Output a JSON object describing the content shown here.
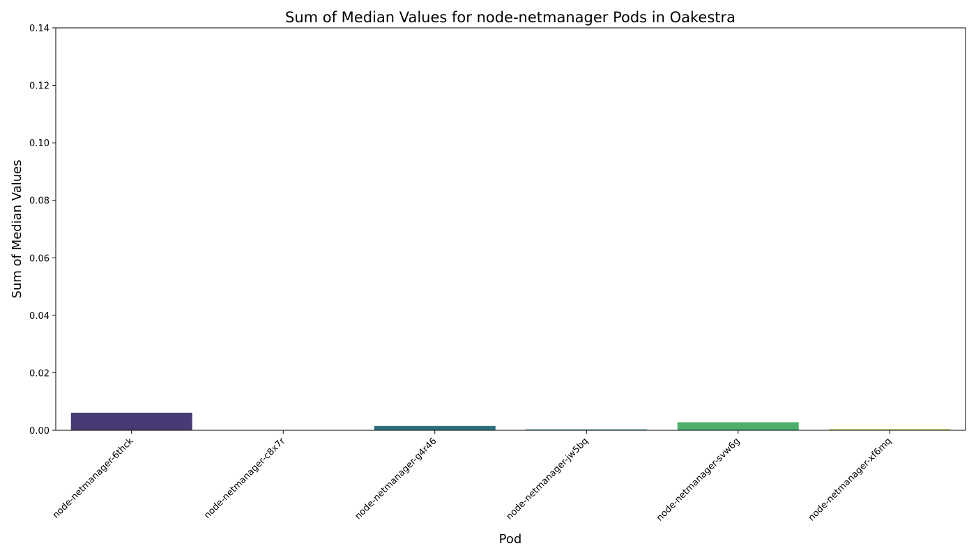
{
  "chart_data": {
    "type": "bar",
    "title": "Sum of Median Values for node-netmanager Pods in Oakestra",
    "xlabel": "Pod",
    "ylabel": "Sum of Median Values",
    "ylim": [
      0,
      0.14
    ],
    "yticks": [
      "0.00",
      "0.02",
      "0.04",
      "0.06",
      "0.08",
      "0.10",
      "0.12",
      "0.14"
    ],
    "grid": false,
    "categories": [
      "node-netmanager-6thck",
      "node-netmanager-c8x7r",
      "node-netmanager-g4r46",
      "node-netmanager-jw5bq",
      "node-netmanager-svw6g",
      "node-netmanager-xf6mq"
    ],
    "values": [
      0.0061,
      0.0,
      0.0015,
      0.0003,
      0.0028,
      0.0004
    ],
    "colors": [
      "#483a75",
      "#3d5a8a",
      "#2e6f7e",
      "#23888e",
      "#4caf6a",
      "#a6d13f"
    ]
  }
}
